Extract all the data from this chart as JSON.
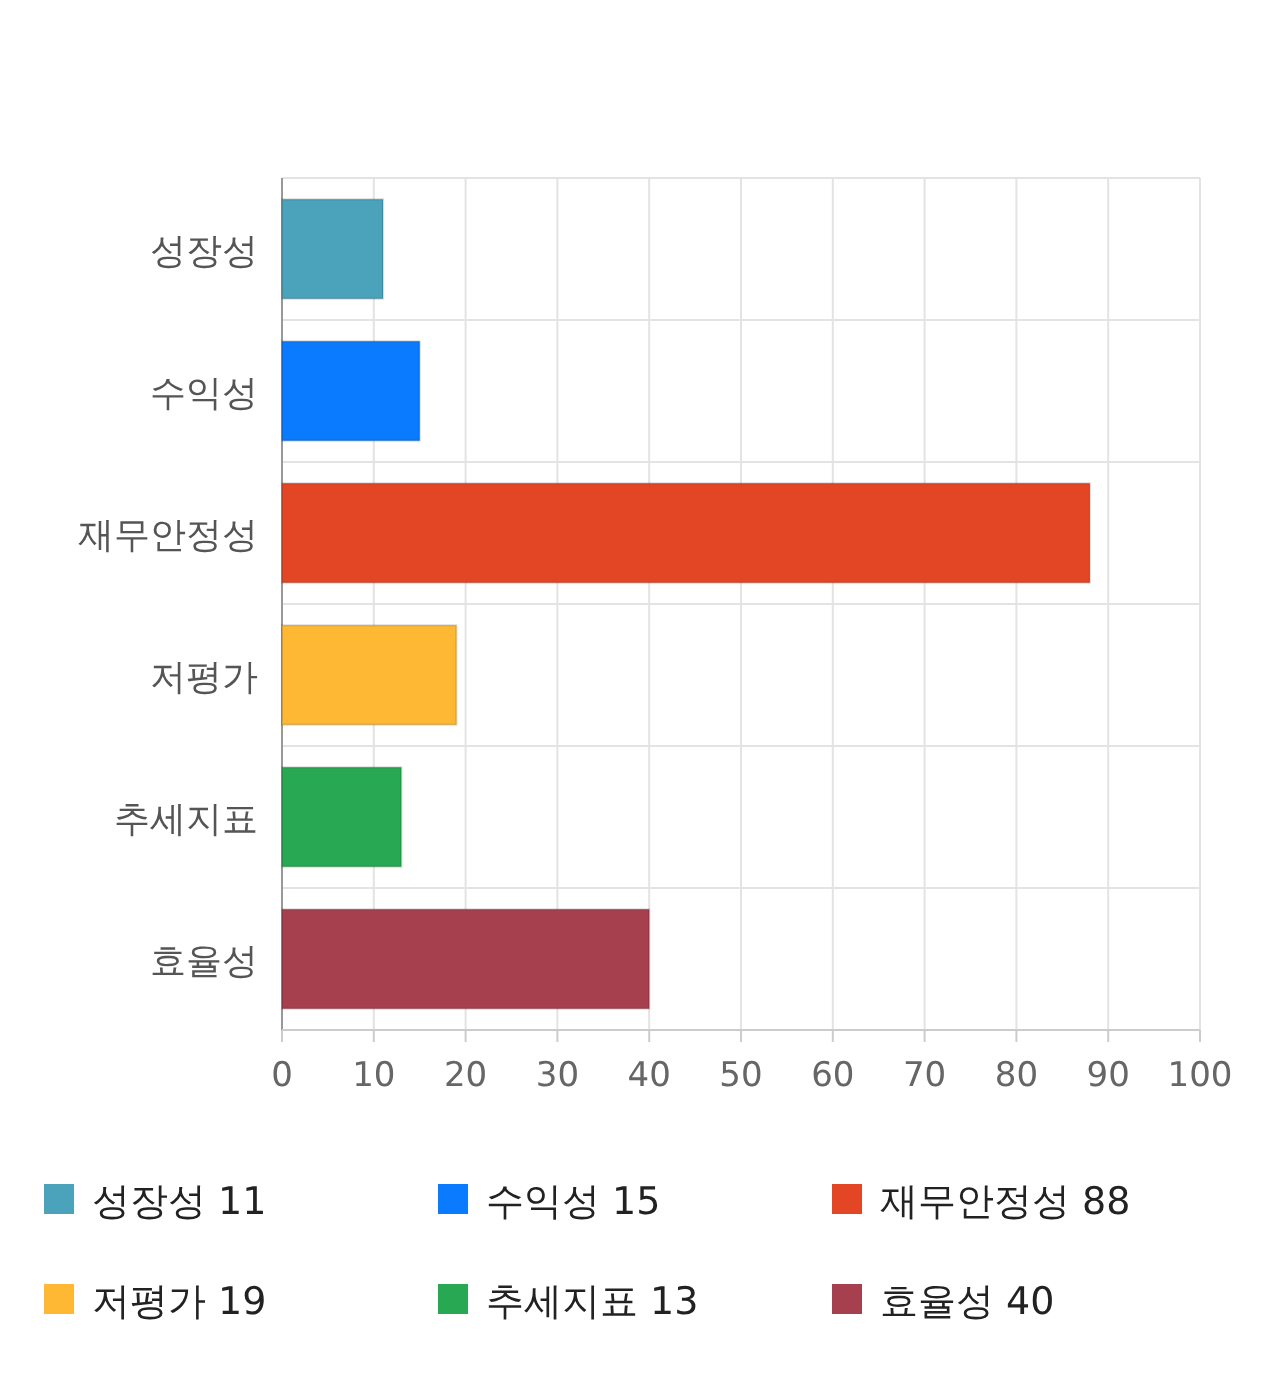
{
  "chart_data": {
    "type": "bar",
    "orientation": "horizontal",
    "categories": [
      "성장성",
      "수익성",
      "재무안정성",
      "저평가",
      "추세지표",
      "효율성"
    ],
    "values": [
      11,
      15,
      88,
      19,
      13,
      40
    ],
    "colors": [
      "#4aa2bb",
      "#0a7afe",
      "#e24624",
      "#feb833",
      "#28a852",
      "#a6404f"
    ],
    "xlim": [
      0,
      100
    ],
    "xticks": [
      0,
      10,
      20,
      30,
      40,
      50,
      60,
      70,
      80,
      90,
      100
    ],
    "grid": true,
    "annotations": [
      "성장성 11",
      "수익성 15",
      "재무안정성 88",
      "저평가 19",
      "추세지표 13",
      "효율성 40"
    ]
  }
}
